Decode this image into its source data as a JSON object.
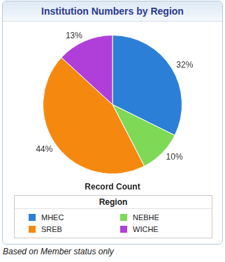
{
  "chart_data": {
    "type": "pie",
    "title": "Institution Numbers by Region",
    "categories": [
      "MHEC",
      "NEBHE",
      "SREB",
      "WICHE"
    ],
    "values": [
      32,
      10,
      44,
      13
    ],
    "value_labels": [
      "32%",
      "10%",
      "44%",
      "13%"
    ],
    "colors": [
      "#2b7fd6",
      "#7ed957",
      "#f5890f",
      "#b03fd9"
    ],
    "data_labels": true,
    "legend": "bottom",
    "legend_title": "Region",
    "xlabel": "Record Count",
    "caption": "Based on Member status only"
  }
}
